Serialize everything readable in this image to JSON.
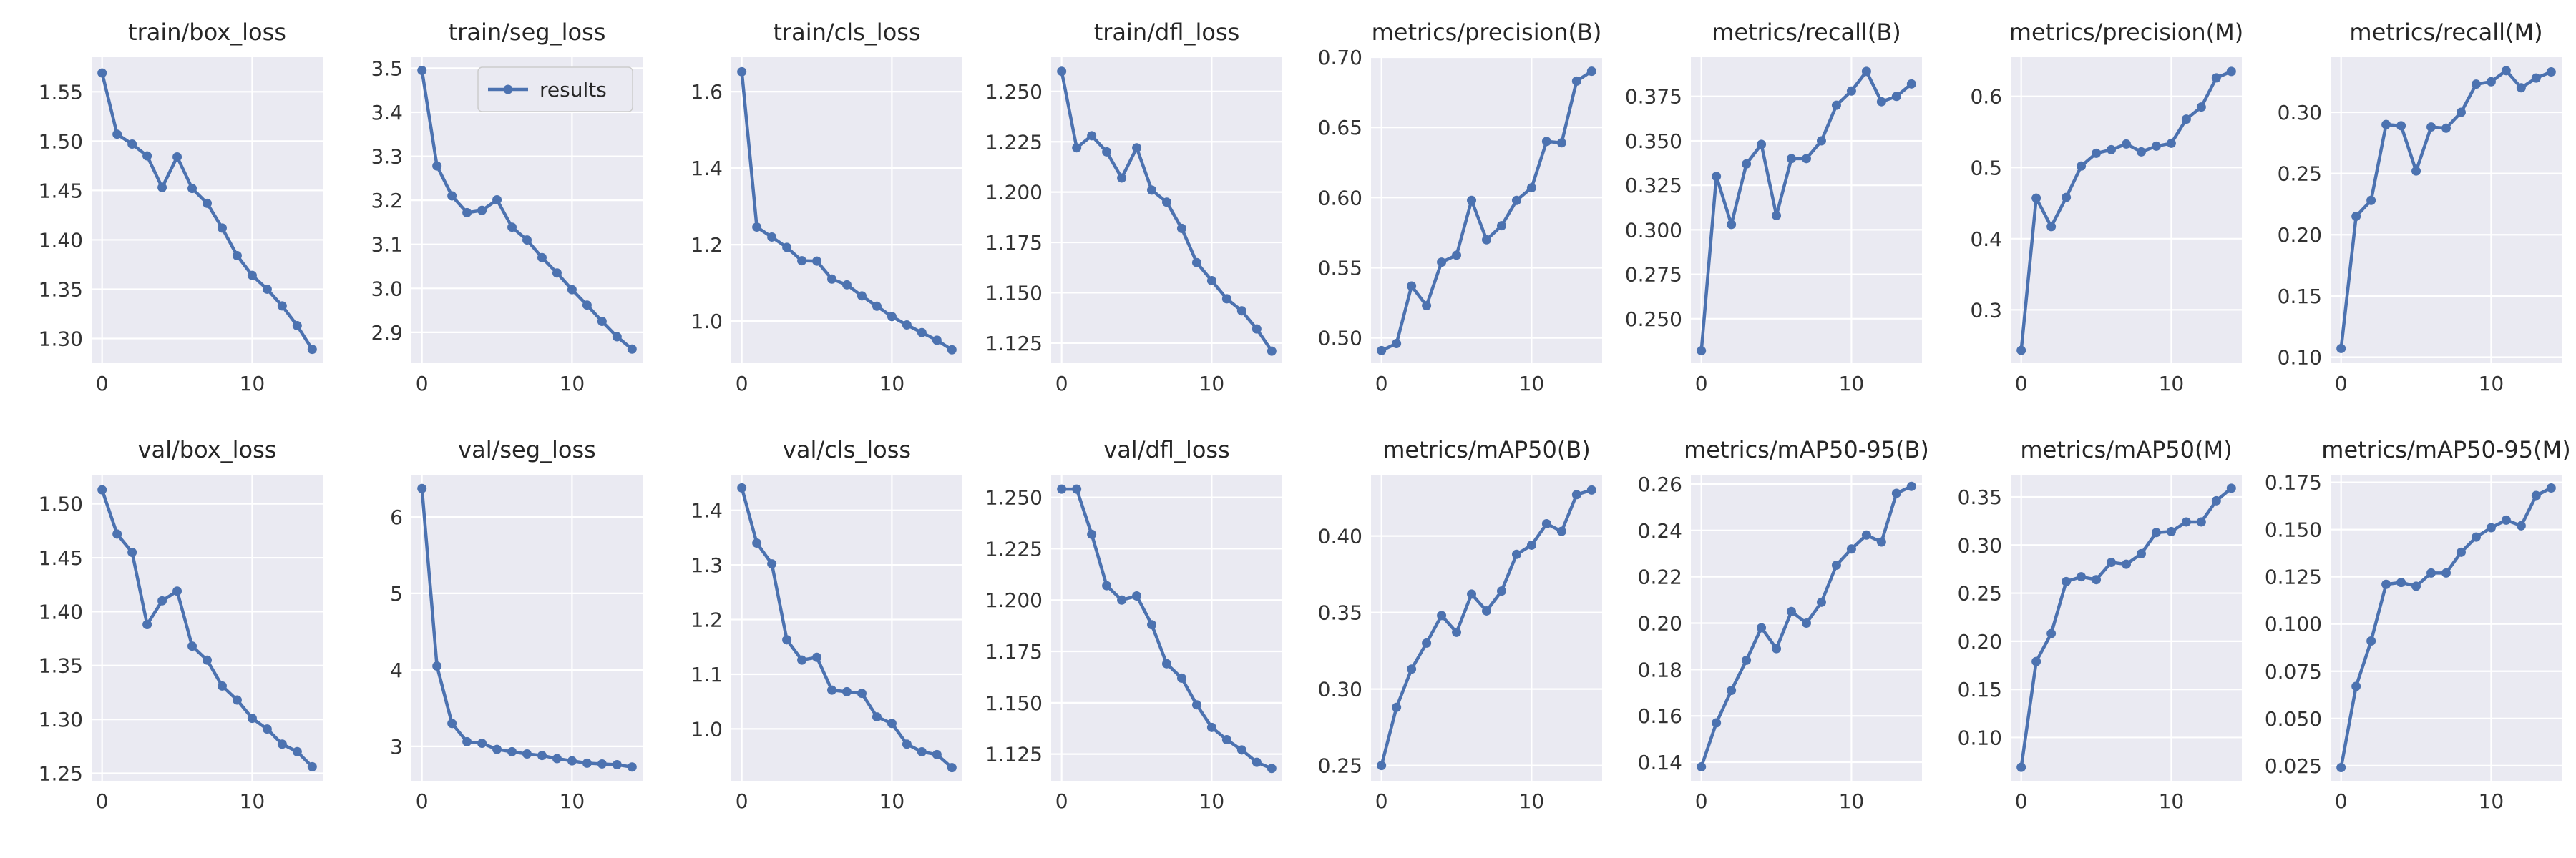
{
  "figure": {
    "background": "#ffffff",
    "panel_background": "#EAEAF2",
    "grid_color": "#ffffff",
    "line_color": "#4C72B0",
    "text_color": "#262626"
  },
  "chart_data": [
    {
      "type": "line",
      "title": "train/box_loss",
      "x": [
        0,
        1,
        2,
        3,
        4,
        5,
        6,
        7,
        8,
        9,
        10,
        11,
        12,
        13,
        14
      ],
      "series": [
        {
          "values": [
            1.569,
            1.507,
            1.497,
            1.485,
            1.453,
            1.484,
            1.452,
            1.437,
            1.412,
            1.384,
            1.364,
            1.35,
            1.333,
            1.313,
            1.289
          ]
        }
      ],
      "xticks": [
        0,
        10
      ],
      "xlim": [
        -0.7,
        14.7
      ],
      "yticks": [
        1.3,
        1.35,
        1.4,
        1.45,
        1.5,
        1.55
      ],
      "ytick_labels": [
        "1.30",
        "1.35",
        "1.40",
        "1.45",
        "1.50",
        "1.55"
      ],
      "ylim": [
        1.275,
        1.585
      ]
    },
    {
      "type": "line",
      "title": "train/seg_loss",
      "x": [
        0,
        1,
        2,
        3,
        4,
        5,
        6,
        7,
        8,
        9,
        10,
        11,
        12,
        13,
        14
      ],
      "series": [
        {
          "name": "results",
          "values": [
            3.495,
            3.278,
            3.21,
            3.172,
            3.177,
            3.201,
            3.139,
            3.11,
            3.07,
            3.035,
            2.997,
            2.962,
            2.925,
            2.89,
            2.862
          ]
        }
      ],
      "legend": {
        "entries": [
          "results"
        ],
        "loc": "upper right"
      },
      "xticks": [
        0,
        10
      ],
      "xlim": [
        -0.7,
        14.7
      ],
      "yticks": [
        2.9,
        3.0,
        3.1,
        3.2,
        3.3,
        3.4,
        3.5
      ],
      "ytick_labels": [
        "2.9",
        "3.0",
        "3.1",
        "3.2",
        "3.3",
        "3.4",
        "3.5"
      ],
      "ylim": [
        2.83,
        3.525
      ]
    },
    {
      "type": "line",
      "title": "train/cls_loss",
      "x": [
        0,
        1,
        2,
        3,
        4,
        5,
        6,
        7,
        8,
        9,
        10,
        11,
        12,
        13,
        14
      ],
      "series": [
        {
          "values": [
            1.652,
            1.246,
            1.22,
            1.193,
            1.158,
            1.157,
            1.11,
            1.095,
            1.066,
            1.039,
            1.012,
            0.99,
            0.97,
            0.95,
            0.925
          ]
        }
      ],
      "xticks": [
        0,
        10
      ],
      "xlim": [
        -0.7,
        14.7
      ],
      "yticks": [
        1.0,
        1.2,
        1.4,
        1.6
      ],
      "ytick_labels": [
        "1.0",
        "1.2",
        "1.4",
        "1.6"
      ],
      "ylim": [
        0.89,
        1.69
      ]
    },
    {
      "type": "line",
      "title": "train/dfl_loss",
      "x": [
        0,
        1,
        2,
        3,
        4,
        5,
        6,
        7,
        8,
        9,
        10,
        11,
        12,
        13,
        14
      ],
      "series": [
        {
          "values": [
            1.26,
            1.222,
            1.228,
            1.22,
            1.207,
            1.222,
            1.201,
            1.195,
            1.182,
            1.165,
            1.156,
            1.147,
            1.141,
            1.132,
            1.121
          ]
        }
      ],
      "xticks": [
        0,
        10
      ],
      "xlim": [
        -0.7,
        14.7
      ],
      "yticks": [
        1.125,
        1.15,
        1.175,
        1.2,
        1.225,
        1.25
      ],
      "ytick_labels": [
        "1.125",
        "1.150",
        "1.175",
        "1.200",
        "1.225",
        "1.250"
      ],
      "ylim": [
        1.115,
        1.267
      ]
    },
    {
      "type": "line",
      "title": "metrics/precision(B)",
      "x": [
        0,
        1,
        2,
        3,
        4,
        5,
        6,
        7,
        8,
        9,
        10,
        11,
        12,
        13,
        14
      ],
      "series": [
        {
          "values": [
            0.491,
            0.496,
            0.537,
            0.523,
            0.554,
            0.559,
            0.598,
            0.57,
            0.58,
            0.598,
            0.607,
            0.64,
            0.639,
            0.683,
            0.69
          ]
        }
      ],
      "xticks": [
        0,
        10
      ],
      "xlim": [
        -0.7,
        14.7
      ],
      "yticks": [
        0.5,
        0.55,
        0.6,
        0.65,
        0.7
      ],
      "ytick_labels": [
        "0.50",
        "0.55",
        "0.60",
        "0.65",
        "0.70"
      ],
      "ylim": [
        0.482,
        0.7
      ]
    },
    {
      "type": "line",
      "title": "metrics/recall(B)",
      "x": [
        0,
        1,
        2,
        3,
        4,
        5,
        6,
        7,
        8,
        9,
        10,
        11,
        12,
        13,
        14
      ],
      "series": [
        {
          "values": [
            0.232,
            0.33,
            0.303,
            0.337,
            0.348,
            0.308,
            0.34,
            0.34,
            0.35,
            0.37,
            0.378,
            0.389,
            0.372,
            0.375,
            0.382
          ]
        }
      ],
      "xticks": [
        0,
        10
      ],
      "xlim": [
        -0.7,
        14.7
      ],
      "yticks": [
        0.25,
        0.275,
        0.3,
        0.325,
        0.35,
        0.375
      ],
      "ytick_labels": [
        "0.250",
        "0.275",
        "0.300",
        "0.325",
        "0.350",
        "0.375"
      ],
      "ylim": [
        0.225,
        0.397
      ]
    },
    {
      "type": "line",
      "title": "metrics/precision(M)",
      "x": [
        0,
        1,
        2,
        3,
        4,
        5,
        6,
        7,
        8,
        9,
        10,
        11,
        12,
        13,
        14
      ],
      "series": [
        {
          "values": [
            0.243,
            0.457,
            0.417,
            0.458,
            0.502,
            0.52,
            0.525,
            0.533,
            0.522,
            0.53,
            0.534,
            0.568,
            0.585,
            0.626,
            0.635
          ]
        }
      ],
      "xticks": [
        0,
        10
      ],
      "xlim": [
        -0.7,
        14.7
      ],
      "yticks": [
        0.3,
        0.4,
        0.5,
        0.6
      ],
      "ytick_labels": [
        "0.3",
        "0.4",
        "0.5",
        "0.6"
      ],
      "ylim": [
        0.225,
        0.655
      ]
    },
    {
      "type": "line",
      "title": "metrics/recall(M)",
      "x": [
        0,
        1,
        2,
        3,
        4,
        5,
        6,
        7,
        8,
        9,
        10,
        11,
        12,
        13,
        14
      ],
      "series": [
        {
          "values": [
            0.107,
            0.215,
            0.228,
            0.29,
            0.289,
            0.252,
            0.288,
            0.287,
            0.3,
            0.323,
            0.325,
            0.334,
            0.32,
            0.328,
            0.333
          ]
        }
      ],
      "xticks": [
        0,
        10
      ],
      "xlim": [
        -0.7,
        14.7
      ],
      "yticks": [
        0.1,
        0.15,
        0.2,
        0.25,
        0.3
      ],
      "ytick_labels": [
        "0.10",
        "0.15",
        "0.20",
        "0.25",
        "0.30"
      ],
      "ylim": [
        0.095,
        0.345
      ]
    },
    {
      "type": "line",
      "title": "val/box_loss",
      "x": [
        0,
        1,
        2,
        3,
        4,
        5,
        6,
        7,
        8,
        9,
        10,
        11,
        12,
        13,
        14
      ],
      "series": [
        {
          "values": [
            1.513,
            1.472,
            1.455,
            1.388,
            1.41,
            1.419,
            1.368,
            1.355,
            1.331,
            1.318,
            1.301,
            1.291,
            1.277,
            1.27,
            1.256
          ]
        }
      ],
      "xticks": [
        0,
        10
      ],
      "xlim": [
        -0.7,
        14.7
      ],
      "yticks": [
        1.25,
        1.3,
        1.35,
        1.4,
        1.45,
        1.5
      ],
      "ytick_labels": [
        "1.25",
        "1.30",
        "1.35",
        "1.40",
        "1.45",
        "1.50"
      ],
      "ylim": [
        1.243,
        1.527
      ]
    },
    {
      "type": "line",
      "title": "val/seg_loss",
      "x": [
        0,
        1,
        2,
        3,
        4,
        5,
        6,
        7,
        8,
        9,
        10,
        11,
        12,
        13,
        14
      ],
      "series": [
        {
          "values": [
            6.37,
            4.05,
            3.3,
            3.06,
            3.04,
            2.96,
            2.93,
            2.9,
            2.88,
            2.84,
            2.81,
            2.78,
            2.77,
            2.76,
            2.73
          ]
        }
      ],
      "xticks": [
        0,
        10
      ],
      "xlim": [
        -0.7,
        14.7
      ],
      "yticks": [
        3,
        4,
        5,
        6
      ],
      "ytick_labels": [
        "3",
        "4",
        "5",
        "6"
      ],
      "ylim": [
        2.55,
        6.55
      ]
    },
    {
      "type": "line",
      "title": "val/cls_loss",
      "x": [
        0,
        1,
        2,
        3,
        4,
        5,
        6,
        7,
        8,
        9,
        10,
        11,
        12,
        13,
        14
      ],
      "series": [
        {
          "values": [
            1.441,
            1.34,
            1.302,
            1.163,
            1.126,
            1.131,
            1.071,
            1.068,
            1.065,
            1.022,
            1.01,
            0.972,
            0.958,
            0.953,
            0.929
          ]
        }
      ],
      "xticks": [
        0,
        10
      ],
      "xlim": [
        -0.7,
        14.7
      ],
      "yticks": [
        1.0,
        1.1,
        1.2,
        1.3,
        1.4
      ],
      "ytick_labels": [
        "1.0",
        "1.1",
        "1.2",
        "1.3",
        "1.4"
      ],
      "ylim": [
        0.905,
        1.465
      ]
    },
    {
      "type": "line",
      "title": "val/dfl_loss",
      "x": [
        0,
        1,
        2,
        3,
        4,
        5,
        6,
        7,
        8,
        9,
        10,
        11,
        12,
        13,
        14
      ],
      "series": [
        {
          "values": [
            1.254,
            1.254,
            1.232,
            1.207,
            1.2,
            1.202,
            1.188,
            1.169,
            1.162,
            1.149,
            1.138,
            1.132,
            1.127,
            1.121,
            1.118
          ]
        }
      ],
      "xticks": [
        0,
        10
      ],
      "xlim": [
        -0.7,
        14.7
      ],
      "yticks": [
        1.125,
        1.15,
        1.175,
        1.2,
        1.225,
        1.25
      ],
      "ytick_labels": [
        "1.125",
        "1.150",
        "1.175",
        "1.200",
        "1.225",
        "1.250"
      ],
      "ylim": [
        1.112,
        1.261
      ]
    },
    {
      "type": "line",
      "title": "metrics/mAP50(B)",
      "x": [
        0,
        1,
        2,
        3,
        4,
        5,
        6,
        7,
        8,
        9,
        10,
        11,
        12,
        13,
        14
      ],
      "series": [
        {
          "values": [
            0.25,
            0.288,
            0.313,
            0.33,
            0.348,
            0.337,
            0.362,
            0.351,
            0.364,
            0.388,
            0.394,
            0.408,
            0.403,
            0.427,
            0.43
          ]
        }
      ],
      "xticks": [
        0,
        10
      ],
      "xlim": [
        -0.7,
        14.7
      ],
      "yticks": [
        0.25,
        0.3,
        0.35,
        0.4
      ],
      "ytick_labels": [
        "0.25",
        "0.30",
        "0.35",
        "0.40"
      ],
      "ylim": [
        0.24,
        0.44
      ]
    },
    {
      "type": "line",
      "title": "metrics/mAP50-95(B)",
      "x": [
        0,
        1,
        2,
        3,
        4,
        5,
        6,
        7,
        8,
        9,
        10,
        11,
        12,
        13,
        14
      ],
      "series": [
        {
          "values": [
            0.138,
            0.157,
            0.171,
            0.184,
            0.198,
            0.189,
            0.205,
            0.2,
            0.209,
            0.225,
            0.232,
            0.238,
            0.235,
            0.256,
            0.259
          ]
        }
      ],
      "xticks": [
        0,
        10
      ],
      "xlim": [
        -0.7,
        14.7
      ],
      "yticks": [
        0.14,
        0.16,
        0.18,
        0.2,
        0.22,
        0.24,
        0.26
      ],
      "ytick_labels": [
        "0.14",
        "0.16",
        "0.18",
        "0.20",
        "0.22",
        "0.24",
        "0.26"
      ],
      "ylim": [
        0.132,
        0.264
      ]
    },
    {
      "type": "line",
      "title": "metrics/mAP50(M)",
      "x": [
        0,
        1,
        2,
        3,
        4,
        5,
        6,
        7,
        8,
        9,
        10,
        11,
        12,
        13,
        14
      ],
      "series": [
        {
          "values": [
            0.069,
            0.179,
            0.208,
            0.262,
            0.267,
            0.264,
            0.282,
            0.28,
            0.291,
            0.313,
            0.314,
            0.324,
            0.324,
            0.346,
            0.359
          ]
        }
      ],
      "xticks": [
        0,
        10
      ],
      "xlim": [
        -0.7,
        14.7
      ],
      "yticks": [
        0.1,
        0.15,
        0.2,
        0.25,
        0.3,
        0.35
      ],
      "ytick_labels": [
        "0.10",
        "0.15",
        "0.20",
        "0.25",
        "0.30",
        "0.35"
      ],
      "ylim": [
        0.055,
        0.373
      ]
    },
    {
      "type": "line",
      "title": "metrics/mAP50-95(M)",
      "x": [
        0,
        1,
        2,
        3,
        4,
        5,
        6,
        7,
        8,
        9,
        10,
        11,
        12,
        13,
        14
      ],
      "series": [
        {
          "values": [
            0.024,
            0.067,
            0.091,
            0.121,
            0.122,
            0.12,
            0.127,
            0.127,
            0.138,
            0.146,
            0.151,
            0.155,
            0.152,
            0.168,
            0.172
          ]
        }
      ],
      "xticks": [
        0,
        10
      ],
      "xlim": [
        -0.7,
        14.7
      ],
      "yticks": [
        0.025,
        0.05,
        0.075,
        0.1,
        0.125,
        0.15,
        0.175
      ],
      "ytick_labels": [
        "0.025",
        "0.050",
        "0.075",
        "0.100",
        "0.125",
        "0.150",
        "0.175"
      ],
      "ylim": [
        0.017,
        0.179
      ]
    }
  ]
}
